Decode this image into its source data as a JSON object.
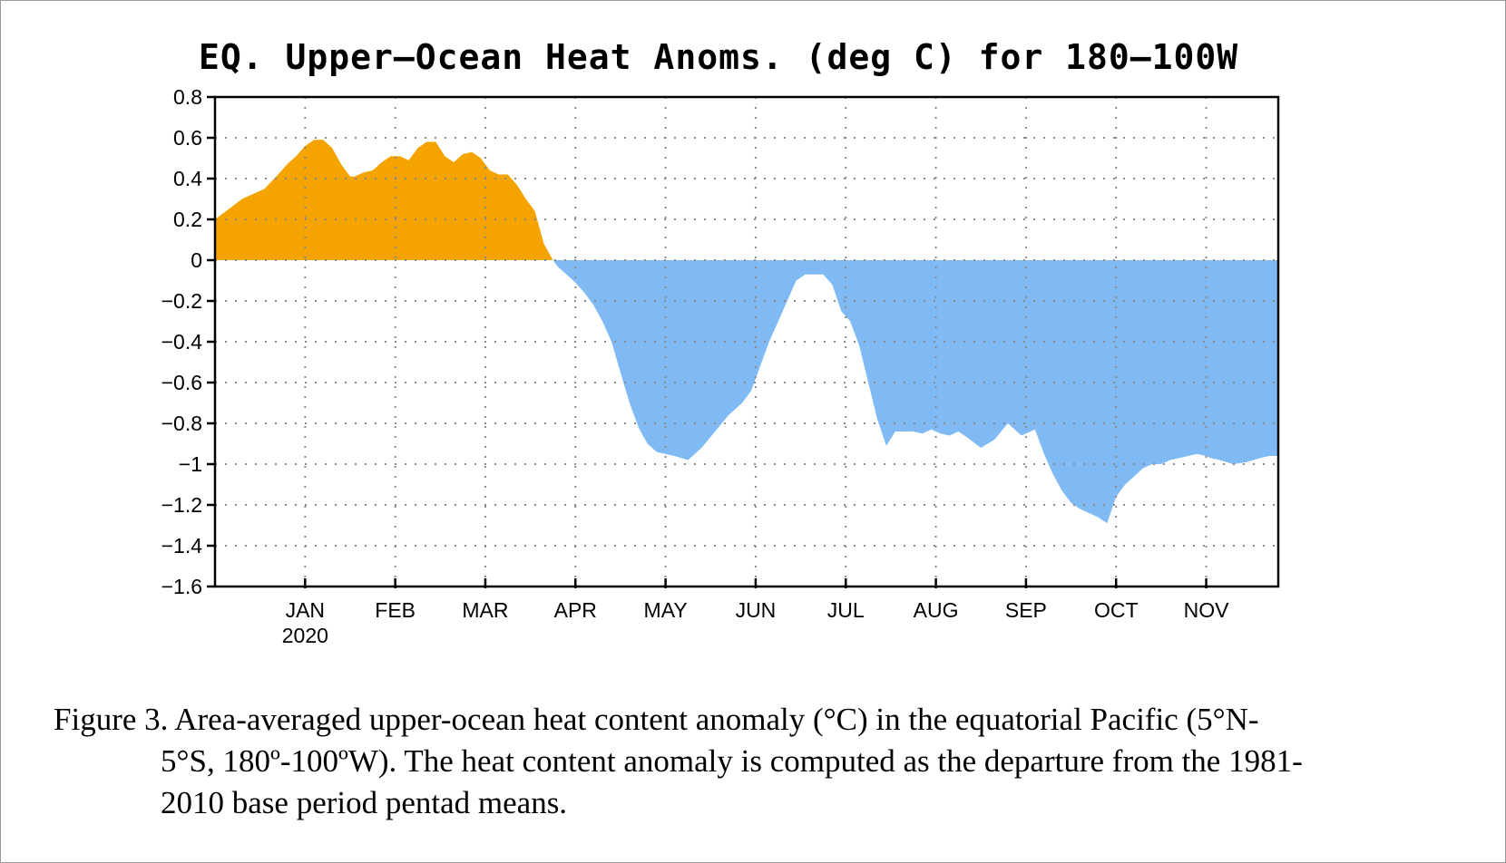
{
  "chart_data": {
    "type": "area",
    "title": "EQ. Upper–Ocean Heat Anoms. (deg C) for 180–100W",
    "xlabel": "",
    "ylabel": "",
    "ylim": [
      -1.6,
      0.8
    ],
    "yticks": [
      0.8,
      0.6,
      0.4,
      0.2,
      0,
      -0.2,
      -0.4,
      -0.6,
      -0.8,
      -1,
      -1.2,
      -1.4,
      -1.6
    ],
    "ytick_labels": [
      "0.8",
      "0.6",
      "0.4",
      "0.2",
      "0",
      "−0.2",
      "−0.4",
      "−0.6",
      "−0.8",
      "−1",
      "−1.2",
      "−1.4",
      "−1.6"
    ],
    "xlim": [
      0,
      11.8
    ],
    "month_ticks": [
      1,
      2,
      3,
      4,
      5,
      6,
      7,
      8,
      9,
      10,
      11
    ],
    "month_labels": [
      "JAN",
      "FEB",
      "MAR",
      "APR",
      "MAY",
      "JUN",
      "JUL",
      "AUG",
      "SEP",
      "OCT",
      "NOV"
    ],
    "year_label": "2020",
    "grid": true,
    "positive_color": "#f5a300",
    "negative_color": "#7fbaf4",
    "x": [
      0.0,
      0.15,
      0.3,
      0.45,
      0.55,
      0.7,
      0.8,
      0.9,
      1.0,
      1.1,
      1.2,
      1.3,
      1.4,
      1.5,
      1.55,
      1.65,
      1.75,
      1.85,
      1.95,
      2.05,
      2.15,
      2.25,
      2.35,
      2.45,
      2.55,
      2.65,
      2.75,
      2.85,
      2.95,
      3.05,
      3.15,
      3.25,
      3.35,
      3.45,
      3.55,
      3.65,
      3.75,
      3.8,
      3.9,
      4.0,
      4.1,
      4.2,
      4.3,
      4.4,
      4.5,
      4.6,
      4.7,
      4.8,
      4.9,
      5.0,
      5.1,
      5.25,
      5.4,
      5.55,
      5.7,
      5.85,
      5.95,
      6.05,
      6.15,
      6.25,
      6.35,
      6.45,
      6.55,
      6.65,
      6.75,
      6.85,
      6.95,
      7.05,
      7.15,
      7.25,
      7.35,
      7.45,
      7.55,
      7.65,
      7.75,
      7.85,
      7.95,
      8.05,
      8.15,
      8.25,
      8.35,
      8.5,
      8.65,
      8.8,
      8.95,
      9.1,
      9.2,
      9.3,
      9.4,
      9.5,
      9.6,
      9.7,
      9.8,
      9.9,
      10.0,
      10.1,
      10.2,
      10.3,
      10.4,
      10.5,
      10.6,
      10.7,
      10.8,
      10.9,
      11.0,
      11.05,
      11.15,
      11.3,
      11.45,
      11.6,
      11.7,
      11.8
    ],
    "values": [
      0.2,
      0.25,
      0.3,
      0.33,
      0.35,
      0.42,
      0.47,
      0.51,
      0.56,
      0.59,
      0.59,
      0.55,
      0.47,
      0.41,
      0.41,
      0.43,
      0.44,
      0.48,
      0.51,
      0.51,
      0.49,
      0.55,
      0.58,
      0.58,
      0.51,
      0.48,
      0.52,
      0.53,
      0.5,
      0.44,
      0.42,
      0.42,
      0.37,
      0.3,
      0.24,
      0.08,
      0.0,
      -0.03,
      -0.07,
      -0.11,
      -0.16,
      -0.22,
      -0.3,
      -0.4,
      -0.55,
      -0.7,
      -0.82,
      -0.9,
      -0.94,
      -0.95,
      -0.96,
      -0.98,
      -0.92,
      -0.84,
      -0.76,
      -0.7,
      -0.64,
      -0.52,
      -0.4,
      -0.3,
      -0.2,
      -0.1,
      -0.07,
      -0.07,
      -0.07,
      -0.12,
      -0.25,
      -0.3,
      -0.42,
      -0.6,
      -0.78,
      -0.91,
      -0.84,
      -0.84,
      -0.84,
      -0.85,
      -0.83,
      -0.85,
      -0.86,
      -0.84,
      -0.87,
      -0.92,
      -0.88,
      -0.8,
      -0.86,
      -0.83,
      -0.95,
      -1.05,
      -1.13,
      -1.19,
      -1.22,
      -1.24,
      -1.26,
      -1.29,
      -1.16,
      -1.1,
      -1.06,
      -1.02,
      -1.0,
      -1.0,
      -0.98,
      -0.97,
      -0.96,
      -0.95,
      -0.96,
      -0.97,
      -0.98,
      -1.0,
      -0.99,
      -0.97,
      -0.96,
      -0.96
    ]
  },
  "caption": {
    "line1": "Figure  3. Area-averaged upper-ocean heat content anomaly  (°C) in the equatorial  Pacific (5°N-",
    "line2": "5°S, 180º-100ºW).  The heat content anomaly is computed as the departure from the 1981-",
    "line3": "2010 base period pentad means."
  }
}
